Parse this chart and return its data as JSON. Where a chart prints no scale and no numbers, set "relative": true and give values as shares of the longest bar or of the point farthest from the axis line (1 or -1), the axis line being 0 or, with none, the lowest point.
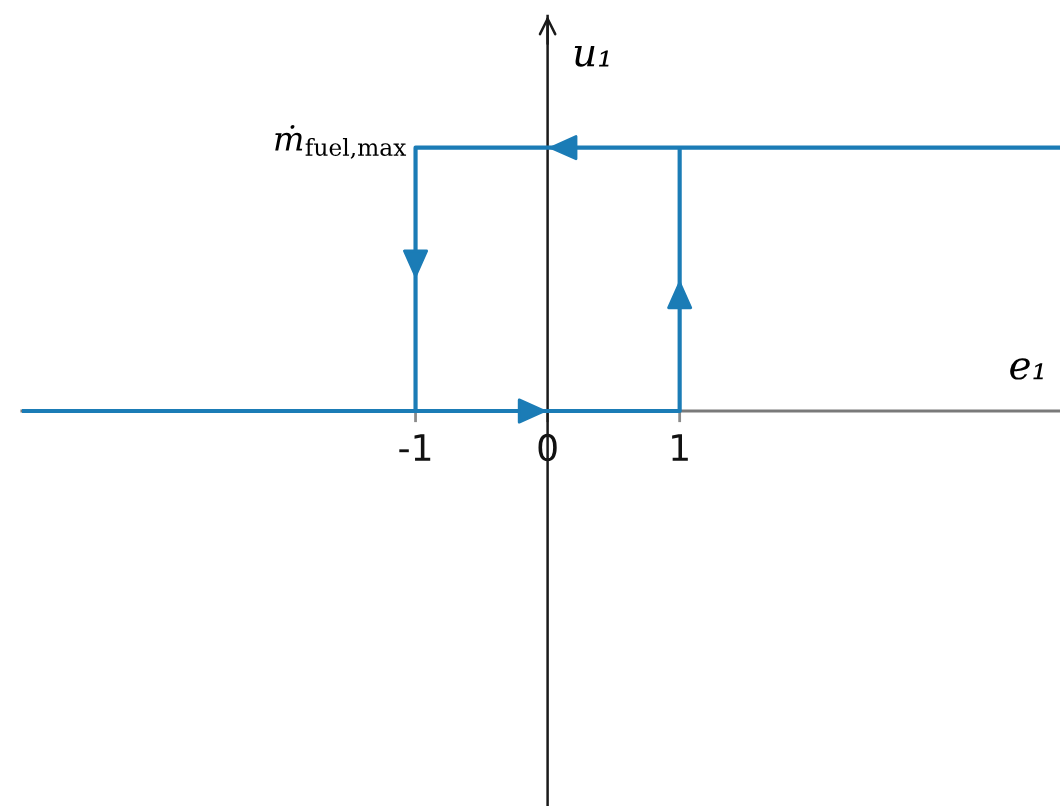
{
  "chart_data": {
    "type": "line",
    "relative": true,
    "xlabel": "e₁",
    "ylabel": "u₁",
    "xlim": [
      -3.98,
      3.88
    ],
    "xticks": [
      -1,
      0,
      1
    ],
    "series": [
      {
        "color": "#1b7cb6",
        "x": [
          -3.98,
          -1,
          1,
          1
        ],
        "values": [
          0,
          0,
          0,
          1
        ]
      },
      {
        "color": "#1b7cb6",
        "x": [
          3.88,
          1,
          -1,
          -1
        ],
        "values": [
          1,
          1,
          1,
          0
        ]
      }
    ],
    "annotations": [
      {
        "text": "ṁ$_{fuel,max}$",
        "x": -1,
        "y": 1
      }
    ],
    "marker": "none",
    "line_style": "solid"
  }
}
